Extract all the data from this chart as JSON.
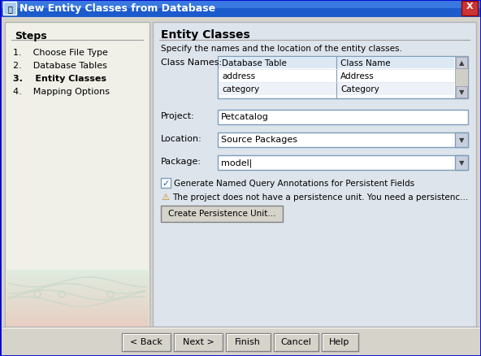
{
  "title": "New Entity Classes from Database",
  "title_bar_color": "#1c5bcc",
  "title_text_color": "#ffffff",
  "dialog_bg": "#d6d3cb",
  "left_panel_bg": "#f0f0e8",
  "right_panel_bg": "#dde4ec",
  "bottom_bar_bg": "#d6d3cb",
  "steps_title": "Steps",
  "steps": [
    "1.    Choose File Type",
    "2.    Database Tables",
    "3.    Entity Classes",
    "4.    Mapping Options"
  ],
  "steps_bold_index": 2,
  "section_title": "Entity Classes",
  "section_desc": "Specify the names and the location of the entity classes.",
  "class_names_label": "Class Names:",
  "table_headers": [
    "Database Table",
    "Class Name"
  ],
  "table_rows": [
    [
      "address",
      "Address"
    ],
    [
      "category",
      "Category"
    ]
  ],
  "project_label": "Project:",
  "project_value": "Petcatalog",
  "location_label": "Location:",
  "location_value": "Source Packages",
  "package_label": "Package:",
  "package_value": "model|",
  "checkbox_text": "Generate Named Query Annotations for Persistent Fields",
  "warning_text": "The project does not have a persistence unit. You need a persistenc...",
  "create_button": "Create Persistence Unit...",
  "buttons": [
    "< Back",
    "Next >",
    "Finish",
    "Cancel",
    "Help"
  ],
  "input_bg": "#ffffff",
  "input_border": "#7f9db9",
  "scrollbar_bg": "#d0cec6",
  "scrollbar_btn": "#c8ccd8",
  "outer_border": "#0000cc",
  "swirl_color": "#c8d8c8"
}
